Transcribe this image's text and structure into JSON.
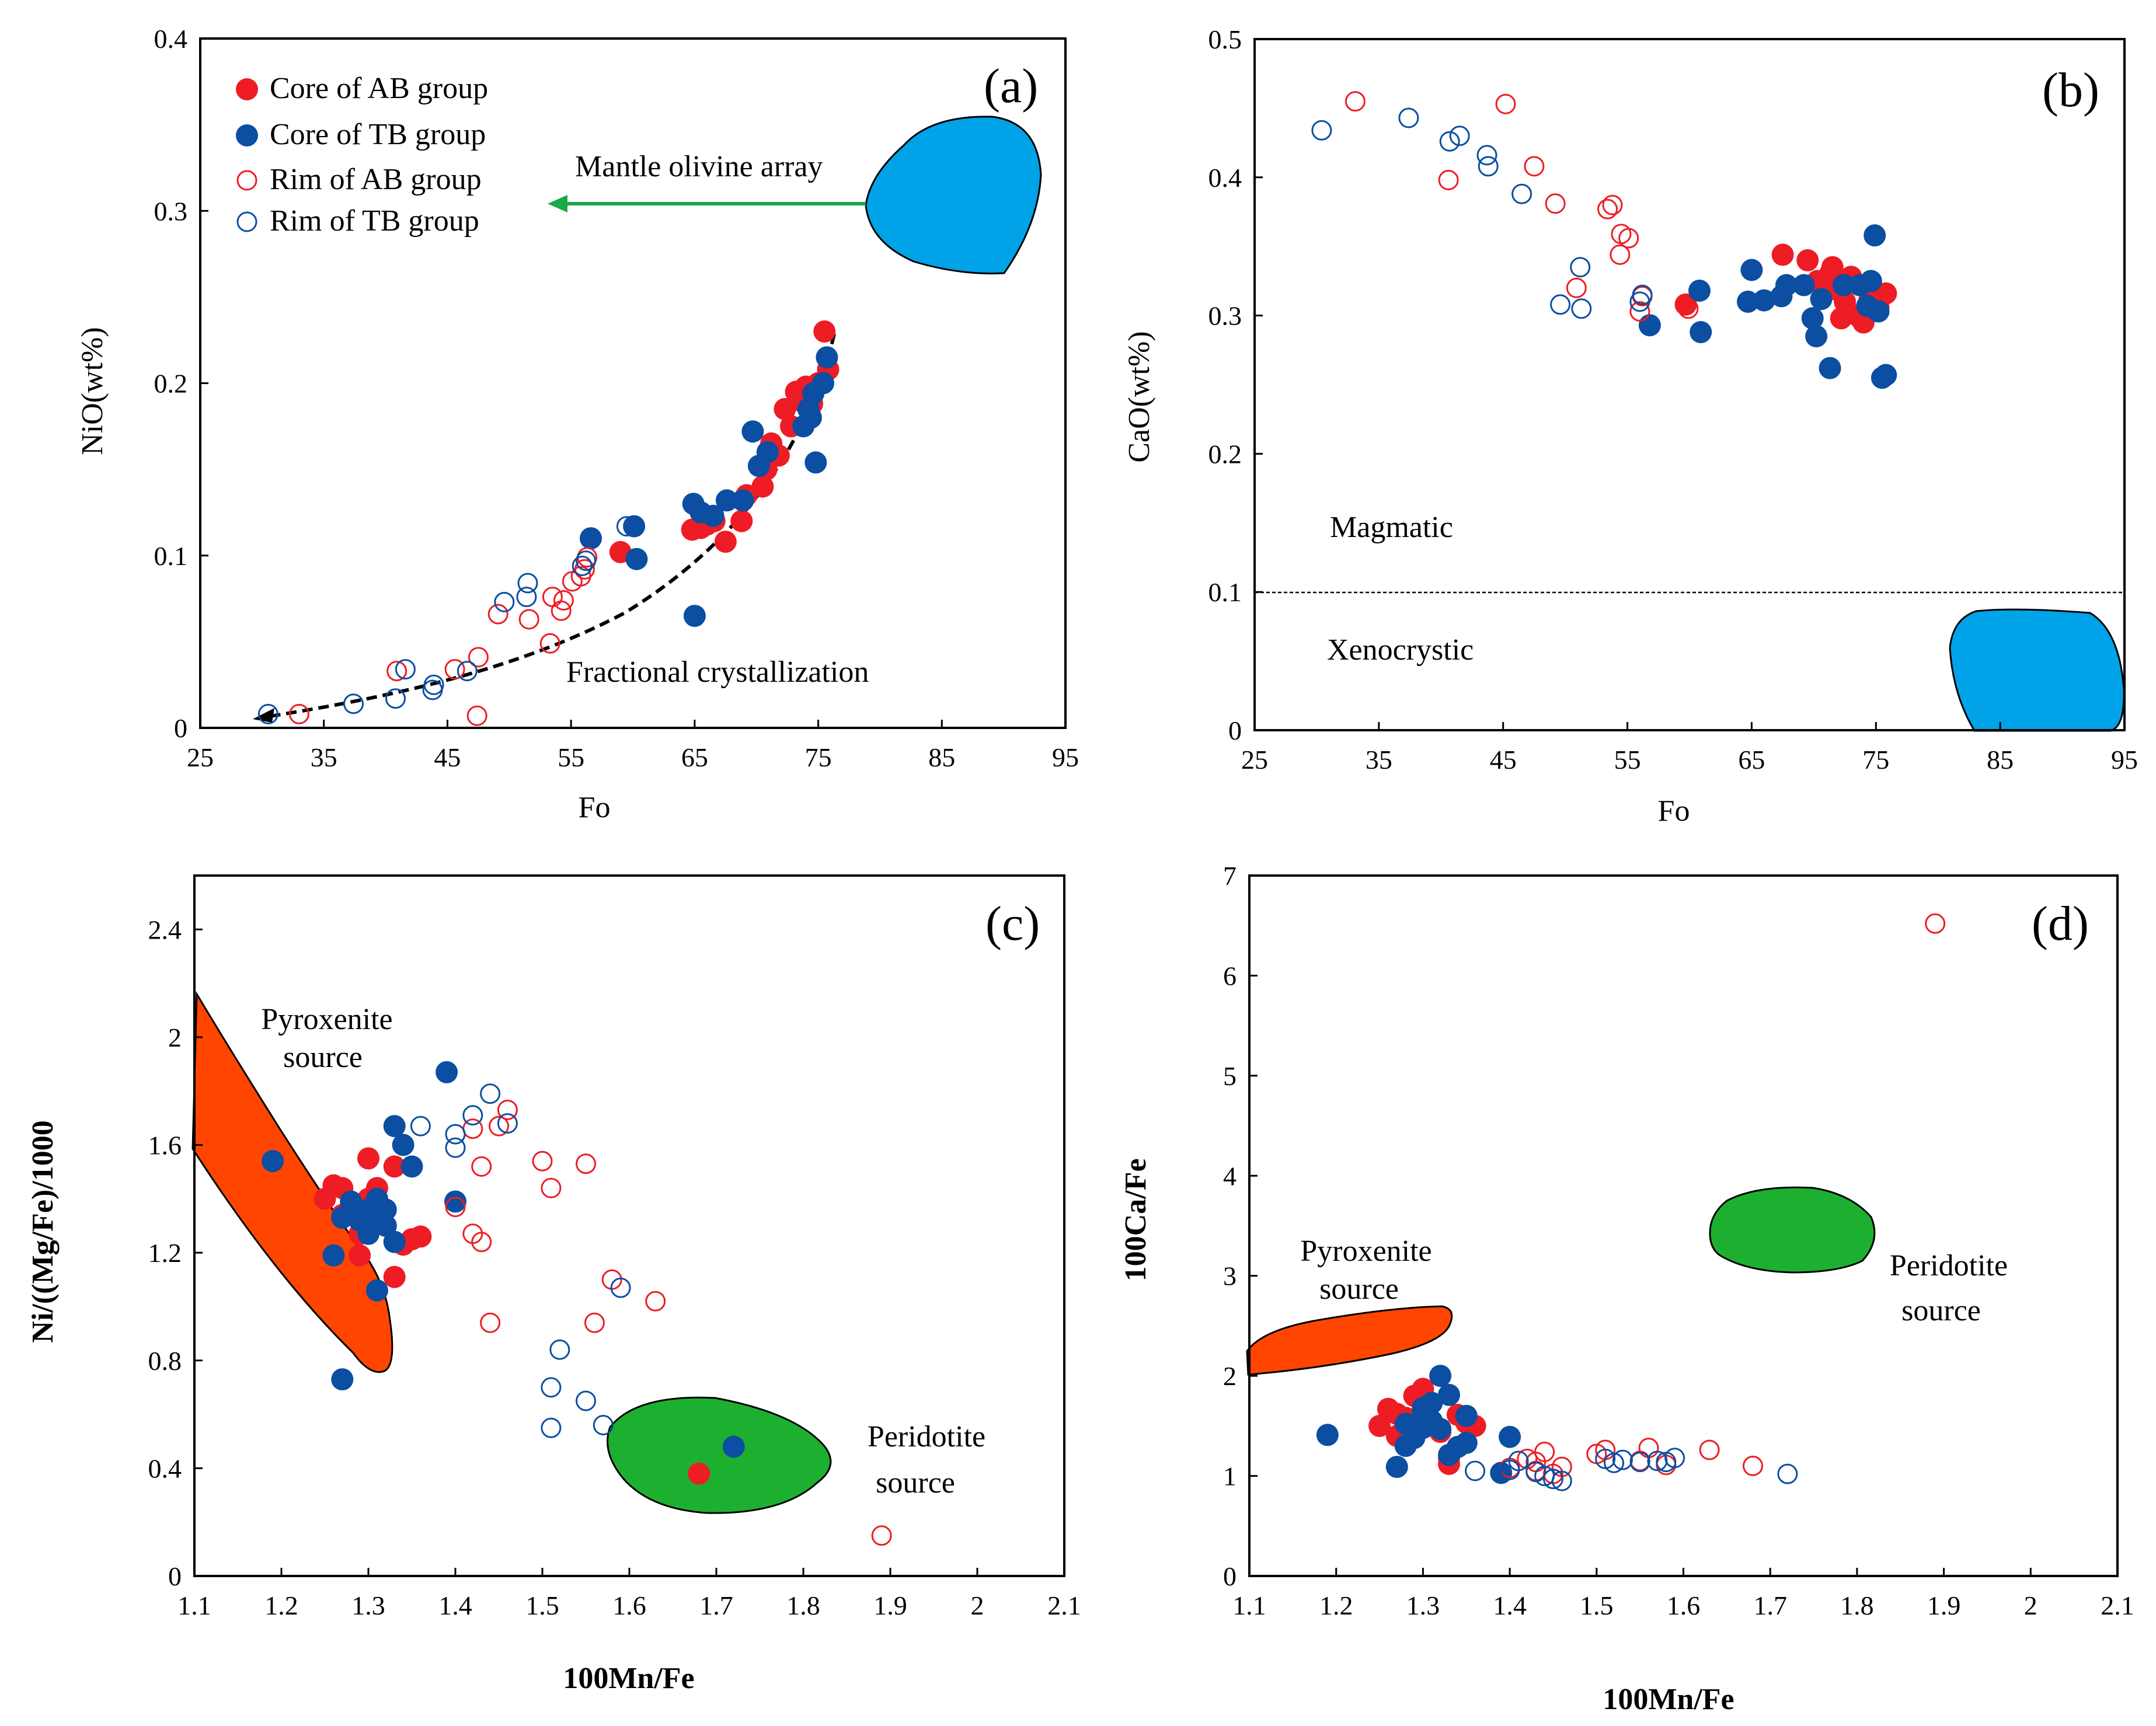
{
  "colors": {
    "ab": "#ee1c24",
    "tb": "#0b4ea2",
    "blue_field": "#00a2e8",
    "orange_field": "#ff4500",
    "green_field": "#1db030",
    "arrow_green": "#19a84a"
  },
  "legend": {
    "core_ab": "Core of AB group",
    "core_tb": "Core of TB group",
    "rim_ab": "Rim of AB group",
    "rim_tb": "Rim of TB group"
  },
  "chart_data": [
    {
      "panel": "(a)",
      "type": "scatter",
      "xlabel": "Fo",
      "ylabel": "NiO(wt%)",
      "xlim": [
        25,
        95
      ],
      "ylim": [
        0,
        0.4
      ],
      "xticks": [
        "25",
        "35",
        "45",
        "55",
        "65",
        "75",
        "85",
        "95"
      ],
      "yticks": [
        "0",
        "0.1",
        "0.2",
        "0.3",
        "0.4"
      ],
      "annotations": {
        "mantle": "Mantle olivine array",
        "fc": "Fractional crystallization"
      },
      "series": [
        {
          "name": "Core of AB group",
          "x": [
            59,
            64.8,
            65.5,
            66,
            66.6,
            67.5,
            68.8,
            69.2,
            70.5,
            70.8,
            71.2,
            71.8,
            72.3,
            72.8,
            73.2,
            73.5,
            74.0,
            74.5,
            75.0,
            75.5,
            75.8
          ],
          "y": [
            0.102,
            0.115,
            0.116,
            0.118,
            0.12,
            0.108,
            0.12,
            0.135,
            0.14,
            0.15,
            0.165,
            0.158,
            0.185,
            0.175,
            0.195,
            0.19,
            0.198,
            0.188,
            0.2,
            0.23,
            0.208
          ]
        },
        {
          "name": "Core of TB group",
          "x": [
            56.6,
            60.1,
            60.3,
            64.9,
            65.0,
            65.5,
            66.5,
            67.6,
            68.9,
            69.7,
            70.2,
            70.9,
            73.8,
            74.2,
            74.4,
            74.6,
            74.8,
            75.4,
            75.7
          ],
          "y": [
            0.11,
            0.117,
            0.098,
            0.13,
            0.065,
            0.125,
            0.123,
            0.132,
            0.132,
            0.172,
            0.152,
            0.16,
            0.175,
            0.185,
            0.18,
            0.194,
            0.154,
            0.2,
            0.215
          ]
        },
        {
          "name": "Rim of AB group",
          "x": [
            33,
            40.9,
            45.6,
            47.5,
            47.4,
            49.1,
            51.6,
            53.5,
            54.2,
            54.4,
            55.1,
            55.8,
            56.1,
            56.3,
            53.3
          ],
          "y": [
            0.008,
            0.033,
            0.034,
            0.041,
            0.007,
            0.066,
            0.063,
            0.076,
            0.068,
            0.074,
            0.085,
            0.088,
            0.092,
            0.099,
            0.049
          ]
        },
        {
          "name": "Rim of TB group",
          "x": [
            30.5,
            37.4,
            40.8,
            41.6,
            43.8,
            43.9,
            46.6,
            49.6,
            51.4,
            51.5,
            55.9,
            56.2,
            59.5
          ],
          "y": [
            0.008,
            0.014,
            0.017,
            0.034,
            0.022,
            0.025,
            0.033,
            0.073,
            0.076,
            0.084,
            0.094,
            0.097,
            0.117
          ]
        }
      ]
    },
    {
      "panel": "(b)",
      "type": "scatter",
      "xlabel": "Fo",
      "ylabel": "CaO(wt%)",
      "xlim": [
        25,
        95
      ],
      "ylim": [
        0,
        0.5
      ],
      "xticks": [
        "25",
        "35",
        "45",
        "55",
        "65",
        "75",
        "85",
        "95"
      ],
      "yticks": [
        "0",
        "0.1",
        "0.2",
        "0.3",
        "0.4",
        "0.5"
      ],
      "threshold": 0.1,
      "annotations": {
        "magmatic": "Magmatic",
        "xeno": "Xenocrystic"
      },
      "series": [
        {
          "name": "Core of AB group",
          "x": [
            59.7,
            67.5,
            69.5,
            70.3,
            71.0,
            71.5,
            72.0,
            72.5,
            73.0,
            73.5,
            74.0,
            74.5,
            75.2,
            75.8,
            72.2,
            71.3
          ],
          "y": [
            0.308,
            0.344,
            0.34,
            0.325,
            0.32,
            0.335,
            0.318,
            0.31,
            0.328,
            0.3,
            0.295,
            0.312,
            0.306,
            0.316,
            0.298,
            0.33
          ]
        },
        {
          "name": "Core of TB group",
          "x": [
            56.8,
            60.8,
            60.9,
            64.7,
            65.0,
            66.0,
            67.4,
            67.8,
            69.2,
            69.9,
            70.2,
            70.6,
            71.3,
            72.4,
            73.7,
            74.3,
            74.6,
            74.9,
            75.2,
            75.5,
            75.8
          ],
          "y": [
            0.293,
            0.318,
            0.288,
            0.31,
            0.333,
            0.311,
            0.314,
            0.322,
            0.322,
            0.298,
            0.285,
            0.312,
            0.262,
            0.322,
            0.322,
            0.307,
            0.325,
            0.358,
            0.303,
            0.255,
            0.257
          ]
        },
        {
          "name": "Rim of AB group",
          "x": [
            33.1,
            40.6,
            45.2,
            47.5,
            49.2,
            50.9,
            53.4,
            53.8,
            54.4,
            54.5,
            55.1,
            56.0,
            56.2,
            59.9
          ],
          "y": [
            0.455,
            0.398,
            0.453,
            0.408,
            0.381,
            0.32,
            0.377,
            0.38,
            0.344,
            0.359,
            0.356,
            0.303,
            0.314,
            0.305
          ]
        },
        {
          "name": "Rim of TB group",
          "x": [
            30.4,
            37.4,
            40.7,
            41.5,
            43.7,
            43.8,
            46.5,
            49.6,
            51.2,
            51.3,
            56.0,
            56.2
          ],
          "y": [
            0.434,
            0.443,
            0.426,
            0.43,
            0.416,
            0.408,
            0.388,
            0.308,
            0.335,
            0.305,
            0.31,
            0.315
          ]
        }
      ]
    },
    {
      "panel": "(c)",
      "type": "scatter",
      "xlabel": "100Mn/Fe",
      "ylabel": "Ni/((Mg/Fe)/1000",
      "xlim": [
        1.1,
        2.1
      ],
      "ylim": [
        0,
        2.6
      ],
      "xticks": [
        "1.1",
        "1.2",
        "1.3",
        "1.4",
        "1.5",
        "1.6",
        "1.7",
        "1.8",
        "1.9",
        "2",
        "2.1"
      ],
      "yticks": [
        "0",
        "0.4",
        "0.8",
        "1.2",
        "1.6",
        "2",
        "2.4"
      ],
      "annotations": {
        "pyroxenite_1": "Pyroxenite",
        "pyroxenite_2": "source",
        "peridotite_1": "Peridotite",
        "peridotite_2": "source"
      },
      "series": [
        {
          "name": "Core of AB group",
          "x": [
            1.25,
            1.26,
            1.27,
            1.28,
            1.29,
            1.3,
            1.3,
            1.31,
            1.32,
            1.33,
            1.34,
            1.35,
            1.36,
            1.33,
            1.27,
            1.29,
            1.31,
            1.68
          ],
          "y": [
            1.4,
            1.45,
            1.34,
            1.38,
            1.27,
            1.55,
            1.4,
            1.44,
            1.3,
            1.52,
            1.23,
            1.25,
            1.26,
            1.11,
            1.44,
            1.19,
            1.36,
            0.38
          ]
        },
        {
          "name": "Core of TB group",
          "x": [
            1.19,
            1.26,
            1.27,
            1.28,
            1.29,
            1.3,
            1.3,
            1.31,
            1.31,
            1.32,
            1.32,
            1.33,
            1.33,
            1.34,
            1.35,
            1.39,
            1.4,
            1.27,
            1.31,
            1.72
          ],
          "y": [
            1.54,
            1.19,
            0.73,
            1.39,
            1.32,
            1.27,
            1.36,
            1.33,
            1.4,
            1.36,
            1.3,
            1.67,
            1.24,
            1.6,
            1.52,
            1.87,
            1.39,
            1.33,
            1.06,
            0.48
          ]
        },
        {
          "name": "Rim of AB group",
          "x": [
            1.4,
            1.43,
            1.42,
            1.43,
            1.44,
            1.45,
            1.46,
            1.5,
            1.51,
            1.55,
            1.56,
            1.58,
            1.63,
            1.68,
            1.89,
            1.42
          ],
          "y": [
            1.37,
            1.52,
            1.27,
            1.24,
            0.94,
            1.67,
            1.73,
            1.54,
            1.44,
            1.53,
            0.94,
            1.1,
            1.02,
            0.38,
            0.15,
            1.66
          ]
        },
        {
          "name": "Rim of TB group",
          "x": [
            1.36,
            1.4,
            1.4,
            1.42,
            1.44,
            1.46,
            1.51,
            1.51,
            1.52,
            1.55,
            1.57,
            1.59,
            1.72
          ],
          "y": [
            1.67,
            1.64,
            1.59,
            1.71,
            1.79,
            1.68,
            0.7,
            0.55,
            0.84,
            0.65,
            0.56,
            1.07,
            0.48
          ]
        }
      ]
    },
    {
      "panel": "(d)",
      "type": "scatter",
      "xlabel": "100Mn/Fe",
      "ylabel": "100Ca/Fe",
      "xlim": [
        1.1,
        2.1
      ],
      "ylim": [
        0,
        7
      ],
      "xticks": [
        "1.1",
        "1.2",
        "1.3",
        "1.4",
        "1.5",
        "1.6",
        "1.7",
        "1.8",
        "1.9",
        "2",
        "2.1"
      ],
      "yticks": [
        "0",
        "1",
        "2",
        "3",
        "4",
        "5",
        "6",
        "7"
      ],
      "annotations": {
        "pyroxenite_1": "Pyroxenite",
        "pyroxenite_2": "source",
        "peridotite_1": "Peridotite",
        "peridotite_2": "source"
      },
      "series": [
        {
          "name": "Core of AB group",
          "x": [
            1.25,
            1.26,
            1.27,
            1.28,
            1.29,
            1.29,
            1.3,
            1.3,
            1.31,
            1.32,
            1.33,
            1.34,
            1.35,
            1.36,
            1.33,
            1.27,
            1.31
          ],
          "y": [
            1.5,
            1.67,
            1.62,
            1.58,
            1.8,
            1.52,
            1.87,
            1.71,
            1.55,
            1.44,
            1.18,
            1.61,
            1.53,
            1.5,
            1.12,
            1.4,
            1.73
          ]
        },
        {
          "name": "Core of TB group",
          "x": [
            1.19,
            1.27,
            1.28,
            1.29,
            1.3,
            1.3,
            1.31,
            1.31,
            1.32,
            1.32,
            1.33,
            1.33,
            1.34,
            1.35,
            1.35,
            1.39,
            1.4,
            1.28,
            1.3
          ],
          "y": [
            1.41,
            1.09,
            1.52,
            1.38,
            1.62,
            1.48,
            1.73,
            1.55,
            1.47,
            2.0,
            1.81,
            1.21,
            1.29,
            1.6,
            1.33,
            1.03,
            1.39,
            1.3,
            1.68
          ]
        },
        {
          "name": "Rim of AB group",
          "x": [
            1.4,
            1.42,
            1.43,
            1.44,
            1.45,
            1.46,
            1.5,
            1.51,
            1.55,
            1.56,
            1.58,
            1.63,
            1.68,
            1.89,
            1.43
          ],
          "y": [
            1.08,
            1.17,
            1.14,
            1.24,
            1.02,
            1.09,
            1.22,
            1.26,
            1.15,
            1.28,
            1.11,
            1.26,
            1.1,
            6.52,
            1.05
          ]
        },
        {
          "name": "Rim of TB group",
          "x": [
            1.36,
            1.4,
            1.41,
            1.43,
            1.44,
            1.45,
            1.46,
            1.51,
            1.52,
            1.53,
            1.55,
            1.57,
            1.58,
            1.59,
            1.72
          ],
          "y": [
            1.05,
            1.06,
            1.15,
            1.04,
            1.0,
            0.97,
            0.95,
            1.17,
            1.13,
            1.16,
            1.14,
            1.15,
            1.14,
            1.18,
            1.02
          ]
        }
      ]
    }
  ]
}
